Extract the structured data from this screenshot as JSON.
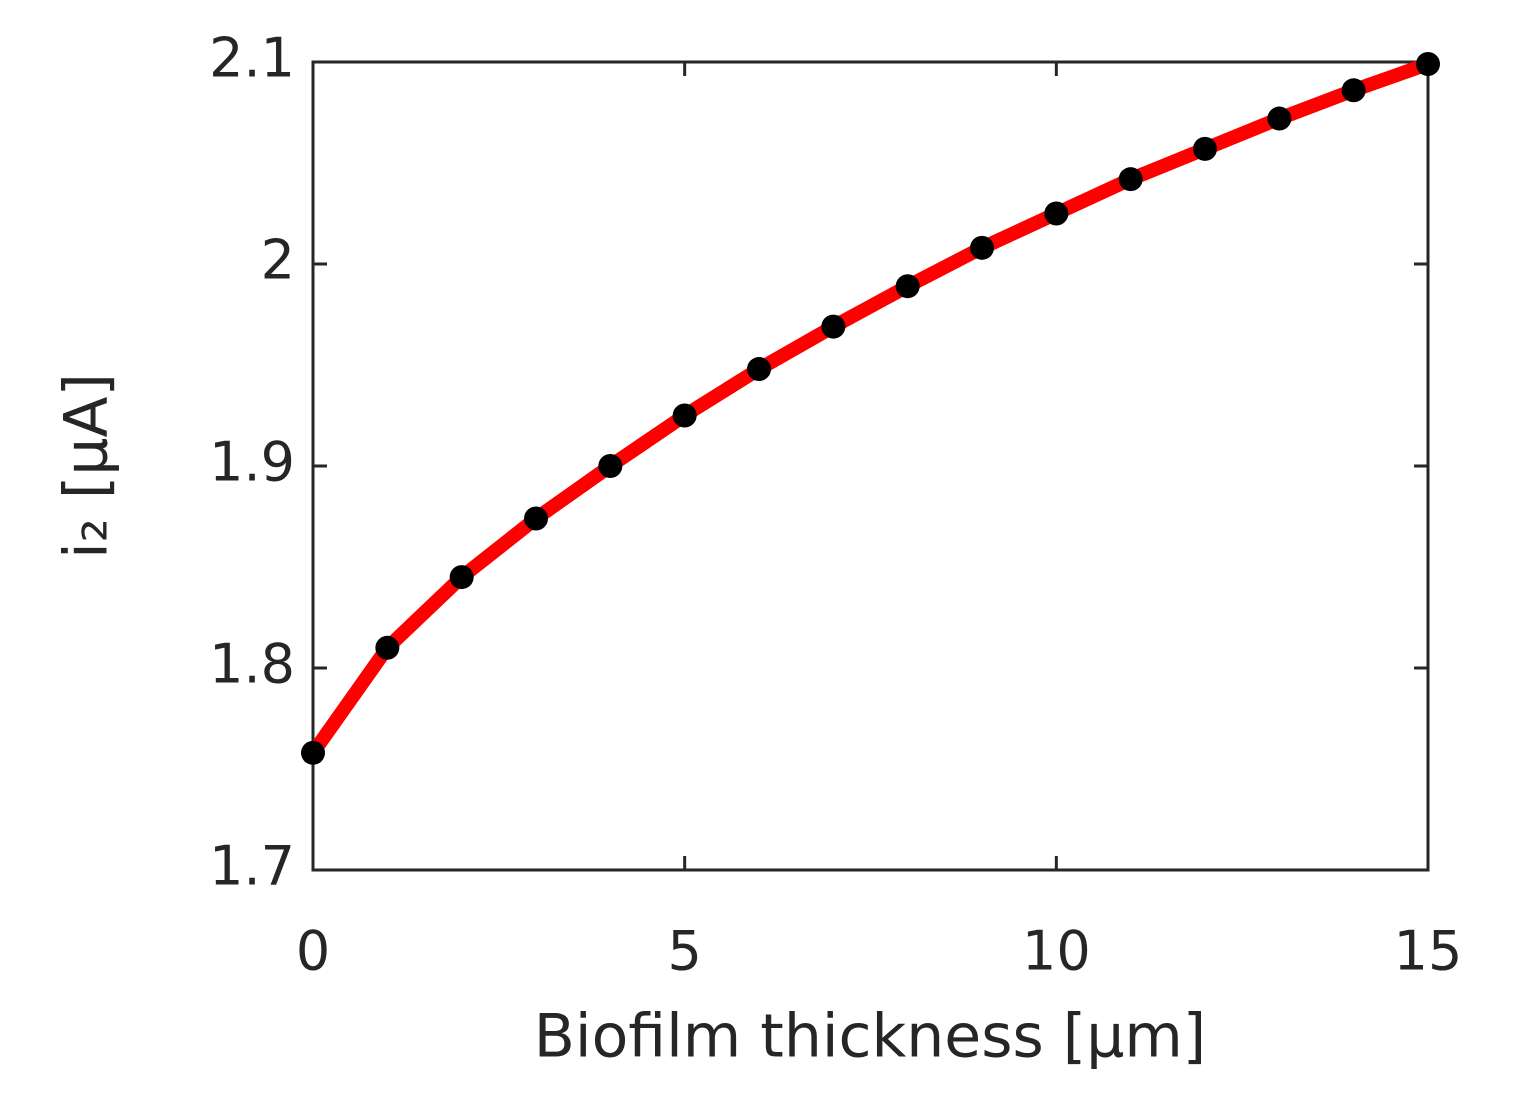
{
  "chart_data": {
    "type": "line",
    "xlabel": "Biofilm thickness [μm]",
    "ylabel": "i₂ [μA]",
    "x": [
      0,
      1,
      2,
      3,
      4,
      5,
      6,
      7,
      8,
      9,
      10,
      11,
      12,
      13,
      14,
      15
    ],
    "series": [
      {
        "color": "#ff0000",
        "marker_color": "#000000",
        "values": [
          1.758,
          1.81,
          1.845,
          1.874,
          1.9,
          1.925,
          1.948,
          1.969,
          1.989,
          2.008,
          2.025,
          2.042,
          2.057,
          2.072,
          2.086,
          2.099
        ]
      }
    ],
    "xlim": [
      0,
      15
    ],
    "xticks": [
      0,
      5,
      10,
      15
    ],
    "ylim": [
      1.7,
      2.1
    ],
    "yticks": [
      1.7,
      1.8,
      1.9,
      2,
      2.1
    ],
    "grid": false
  }
}
